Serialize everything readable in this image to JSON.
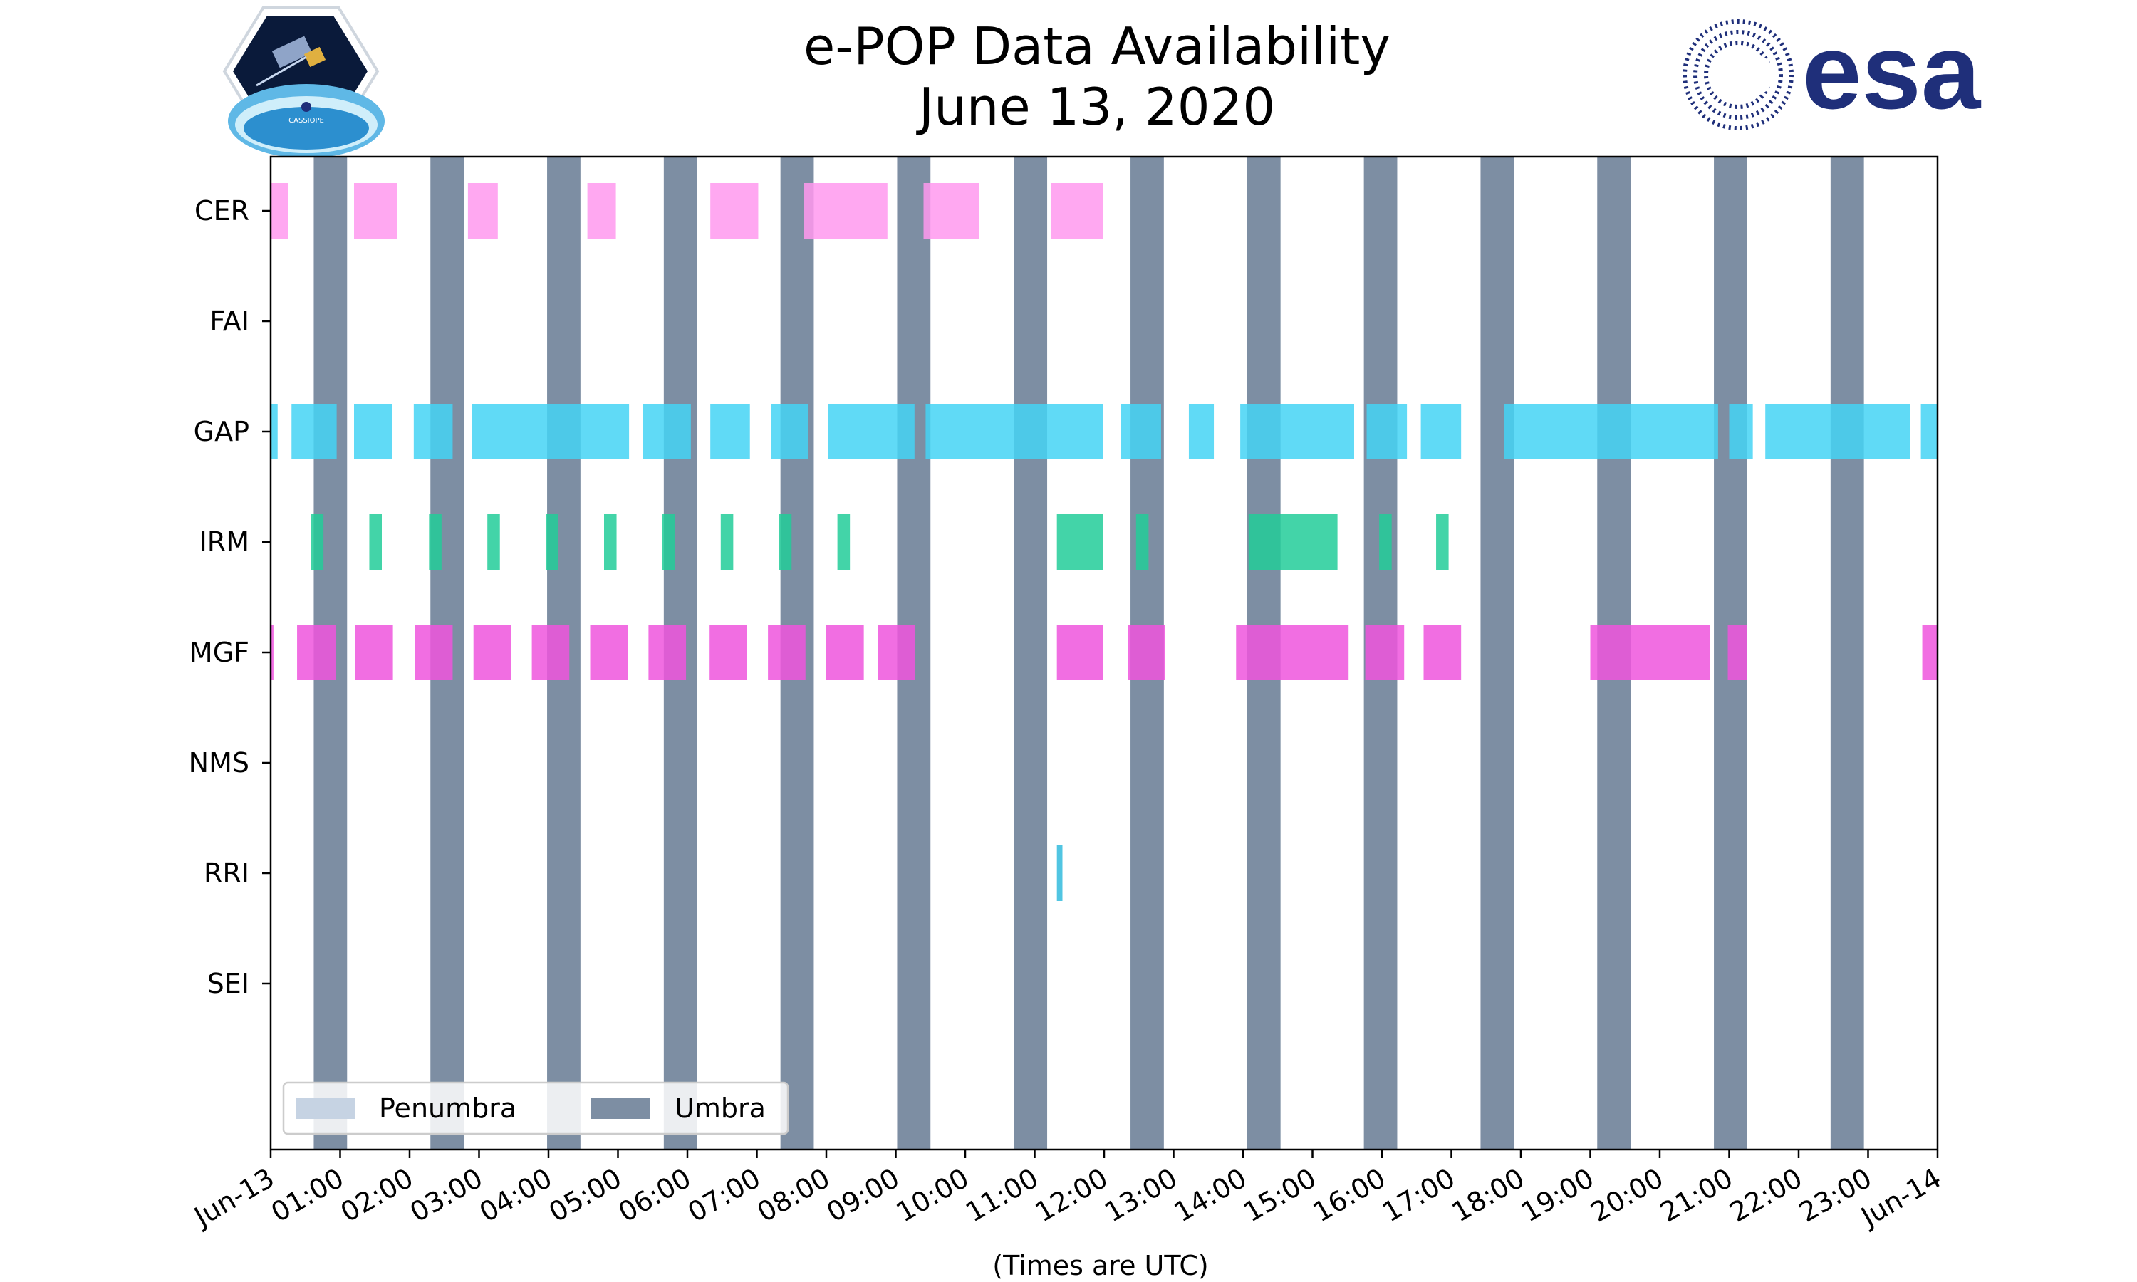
{
  "chart_data": {
    "type": "timeline",
    "title_line1": "e-POP Data Availability",
    "title_line2": "June 13, 2020",
    "xlabel": "(Times are UTC)",
    "xlim_hours": [
      0,
      24
    ],
    "x_ticks": [
      {
        "h": 0,
        "label": "Jun-13"
      },
      {
        "h": 1,
        "label": "01:00"
      },
      {
        "h": 2,
        "label": "02:00"
      },
      {
        "h": 3,
        "label": "03:00"
      },
      {
        "h": 4,
        "label": "04:00"
      },
      {
        "h": 5,
        "label": "05:00"
      },
      {
        "h": 6,
        "label": "06:00"
      },
      {
        "h": 7,
        "label": "07:00"
      },
      {
        "h": 8,
        "label": "08:00"
      },
      {
        "h": 9,
        "label": "09:00"
      },
      {
        "h": 10,
        "label": "10:00"
      },
      {
        "h": 11,
        "label": "11:00"
      },
      {
        "h": 12,
        "label": "12:00"
      },
      {
        "h": 13,
        "label": "13:00"
      },
      {
        "h": 14,
        "label": "14:00"
      },
      {
        "h": 15,
        "label": "15:00"
      },
      {
        "h": 16,
        "label": "16:00"
      },
      {
        "h": 17,
        "label": "17:00"
      },
      {
        "h": 18,
        "label": "18:00"
      },
      {
        "h": 19,
        "label": "19:00"
      },
      {
        "h": 20,
        "label": "20:00"
      },
      {
        "h": 21,
        "label": "21:00"
      },
      {
        "h": 22,
        "label": "22:00"
      },
      {
        "h": 23,
        "label": "23:00"
      },
      {
        "h": 24,
        "label": "Jun-14"
      }
    ],
    "instruments": [
      "CER",
      "FAI",
      "GAP",
      "IRM",
      "MGF",
      "NMS",
      "RRI",
      "SEI"
    ],
    "umbra_intervals_hours": [
      [
        0.62,
        1.1
      ],
      [
        2.3,
        2.78
      ],
      [
        3.98,
        4.46
      ],
      [
        5.66,
        6.14
      ],
      [
        7.34,
        7.82
      ],
      [
        9.02,
        9.5
      ],
      [
        10.7,
        11.18
      ],
      [
        12.38,
        12.86
      ],
      [
        14.06,
        14.54
      ],
      [
        15.74,
        16.22
      ],
      [
        17.42,
        17.9
      ],
      [
        19.1,
        19.58
      ],
      [
        20.78,
        21.26
      ],
      [
        22.46,
        22.94
      ]
    ],
    "penumbra_intervals_hours": [],
    "series": [
      {
        "name": "CER",
        "color": "#ff99ee",
        "intervals": [
          [
            0.0,
            0.25
          ],
          [
            1.2,
            1.82
          ],
          [
            2.84,
            3.27
          ],
          [
            4.56,
            4.97
          ],
          [
            6.33,
            7.02
          ],
          [
            7.68,
            8.88
          ],
          [
            9.4,
            10.2
          ],
          [
            11.24,
            11.98
          ]
        ]
      },
      {
        "name": "FAI",
        "color": "#b0b0b0",
        "intervals": []
      },
      {
        "name": "GAP",
        "color": "#44d3f5",
        "intervals": [
          [
            0.0,
            0.1
          ],
          [
            0.3,
            0.95
          ],
          [
            1.2,
            1.75
          ],
          [
            2.06,
            2.62
          ],
          [
            2.9,
            5.16
          ],
          [
            5.36,
            6.05
          ],
          [
            6.33,
            6.9
          ],
          [
            7.2,
            7.74
          ],
          [
            8.03,
            9.27
          ],
          [
            9.43,
            11.98
          ],
          [
            12.24,
            12.82
          ],
          [
            13.22,
            13.58
          ],
          [
            13.96,
            15.6
          ],
          [
            15.78,
            16.36
          ],
          [
            16.56,
            17.14
          ],
          [
            17.76,
            20.84
          ],
          [
            21.0,
            21.34
          ],
          [
            21.52,
            23.6
          ],
          [
            23.76,
            24.0
          ]
        ]
      },
      {
        "name": "IRM",
        "color": "#22cc99",
        "intervals": [
          [
            0.58,
            0.76
          ],
          [
            1.42,
            1.6
          ],
          [
            2.28,
            2.46
          ],
          [
            3.12,
            3.3
          ],
          [
            3.96,
            4.14
          ],
          [
            4.8,
            4.98
          ],
          [
            5.64,
            5.82
          ],
          [
            6.48,
            6.66
          ],
          [
            7.32,
            7.5
          ],
          [
            8.16,
            8.34
          ],
          [
            11.32,
            11.98
          ],
          [
            12.46,
            12.64
          ],
          [
            14.08,
            15.36
          ],
          [
            15.96,
            16.14
          ],
          [
            16.78,
            16.96
          ]
        ]
      },
      {
        "name": "MGF",
        "color": "#ee55dd",
        "intervals": [
          [
            0.0,
            0.04
          ],
          [
            0.38,
            0.94
          ],
          [
            1.22,
            1.76
          ],
          [
            2.08,
            2.62
          ],
          [
            2.92,
            3.46
          ],
          [
            3.76,
            4.3
          ],
          [
            4.6,
            5.14
          ],
          [
            5.44,
            5.98
          ],
          [
            6.32,
            6.86
          ],
          [
            7.16,
            7.7
          ],
          [
            8.0,
            8.54
          ],
          [
            8.74,
            9.28
          ],
          [
            11.32,
            11.98
          ],
          [
            12.34,
            12.88
          ],
          [
            13.9,
            15.52
          ],
          [
            15.76,
            16.32
          ],
          [
            16.6,
            17.14
          ],
          [
            19.0,
            20.72
          ],
          [
            20.98,
            21.26
          ],
          [
            23.78,
            24.0
          ]
        ]
      },
      {
        "name": "NMS",
        "color": "#b0b0b0",
        "intervals": []
      },
      {
        "name": "RRI",
        "color": "#33bbdd",
        "intervals": [
          [
            11.32,
            11.4
          ]
        ]
      },
      {
        "name": "SEI",
        "color": "#b0b0b0",
        "intervals": []
      }
    ],
    "legend": [
      {
        "label": "Penumbra",
        "color": "#c6d3e3"
      },
      {
        "label": "Umbra",
        "color": "#7d8ea3"
      }
    ],
    "legend_position": "lower-left"
  },
  "logos": {
    "left_logo_text": "CASSIOPE",
    "right_logo_text": "esa"
  },
  "colors": {
    "umbra": "#7d8ea3",
    "penumbra": "#c6d3e3",
    "esa_blue": "#1f2f7a"
  }
}
